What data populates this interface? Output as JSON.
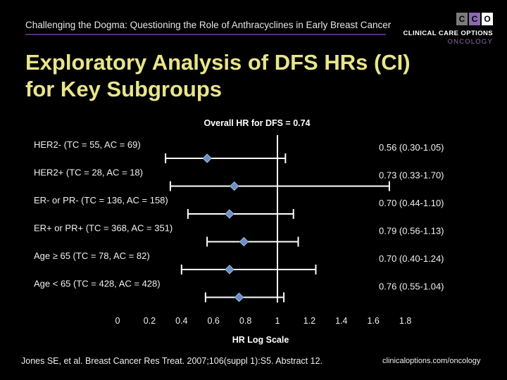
{
  "header": {
    "title": "Challenging the Dogma: Questioning the Role of Anthracyclines in Early Breast Cancer"
  },
  "logo": {
    "letters": [
      "C",
      "C",
      "O"
    ],
    "name": "CLINICAL CARE OPTIONS",
    "sub": "ONCOLOGY",
    "colors": [
      "#8a8a8a",
      "#8b6ab0",
      "#ffffff"
    ]
  },
  "slide": {
    "title_line1": "Exploratory Analysis of DFS HRs (CI)",
    "title_line2": "for Key Subgroups"
  },
  "chart_data": {
    "type": "forest",
    "title": "Overall HR for DFS = 0.74",
    "xlabel": "HR Log Scale",
    "xlim": [
      0,
      1.8
    ],
    "xticks": [
      0,
      0.2,
      0.4,
      0.6,
      0.8,
      1,
      1.2,
      1.4,
      1.6,
      1.8
    ],
    "xtick_labels": [
      "0",
      "0.2",
      "0.4",
      "0.6",
      "0.8",
      "1",
      "1.2",
      "1.4",
      "1.6",
      "1.8"
    ],
    "reference_line": 1,
    "marker_color": "#6a8fc4",
    "rows": [
      {
        "label": "HER2- (TC = 55, AC = 69)",
        "hr": 0.56,
        "lo": 0.3,
        "hi": 1.05,
        "ci_text": "0.56 (0.30-1.05)"
      },
      {
        "label": "HER2+ (TC = 28, AC = 18)",
        "hr": 0.73,
        "lo": 0.33,
        "hi": 1.7,
        "ci_text": "0.73 (0.33-1.70)"
      },
      {
        "label": "ER- or PR- (TC = 136, AC = 158)",
        "hr": 0.7,
        "lo": 0.44,
        "hi": 1.1,
        "ci_text": "0.70 (0.44-1.10)"
      },
      {
        "label": "ER+ or PR+ (TC = 368, AC = 351)",
        "hr": 0.79,
        "lo": 0.56,
        "hi": 1.13,
        "ci_text": "0.79 (0.56-1.13)"
      },
      {
        "label": "Age ≥ 65 (TC = 78, AC = 82)",
        "hr": 0.7,
        "lo": 0.4,
        "hi": 1.24,
        "ci_text": "0.70 (0.40-1.24)"
      },
      {
        "label": "Age < 65 (TC = 428, AC = 428)",
        "hr": 0.76,
        "lo": 0.55,
        "hi": 1.04,
        "ci_text": "0.76 (0.55-1.04)"
      }
    ]
  },
  "footer": {
    "citation": "Jones SE, et al. Breast Cancer Res Treat. 2007;106(suppl 1):S5. Abstract 12.",
    "url": "clinicaloptions.com/oncology"
  }
}
